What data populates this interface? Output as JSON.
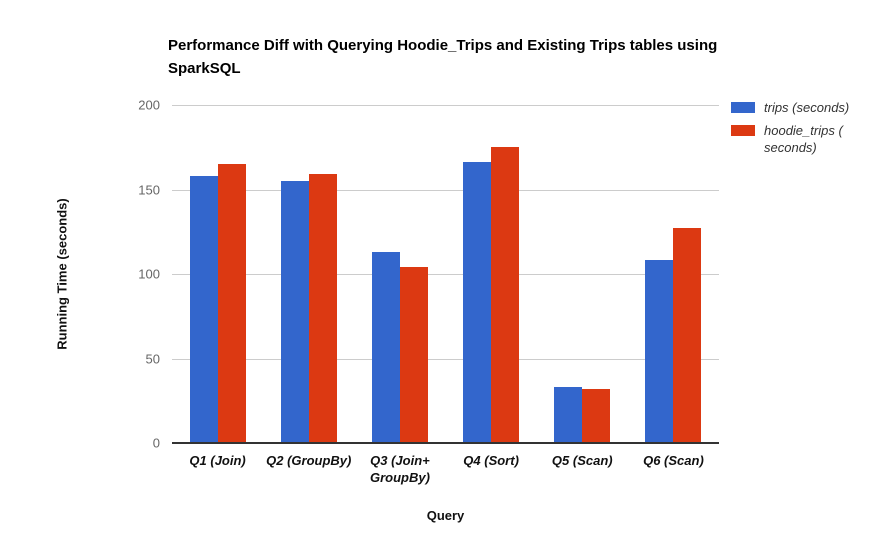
{
  "chart": {
    "title": "Performance Diff with Querying Hoodie_Trips and Existing Trips tables using SparkSQL",
    "xlabel": "Query",
    "ylabel": "Running Time (seconds)"
  },
  "chart_data": {
    "type": "bar",
    "title": "Performance Diff with Querying Hoodie_Trips and Existing Trips tables using SparkSQL",
    "xlabel": "Query",
    "ylabel": "Running Time (seconds)",
    "categories": [
      "Q1 (Join)",
      "Q2 (GroupBy)",
      "Q3 (Join+\nGroupBy)",
      "Q4 (Sort)",
      "Q5 (Scan)",
      "Q6 (Scan)"
    ],
    "series": [
      {
        "name": "trips (seconds)",
        "color": "#3366CC",
        "values": [
          158,
          155,
          113,
          166,
          33,
          108
        ]
      },
      {
        "name": "hoodie_trips (\nseconds)",
        "color": "#DC3912",
        "values": [
          165,
          159,
          104,
          175,
          32,
          127
        ]
      }
    ],
    "ylim": [
      0,
      200
    ],
    "yticks": [
      0,
      50,
      100,
      150,
      200
    ],
    "grid": true,
    "legend_position": "right",
    "gridline_color": "#cccccc",
    "axis_line_color": "#333333"
  }
}
